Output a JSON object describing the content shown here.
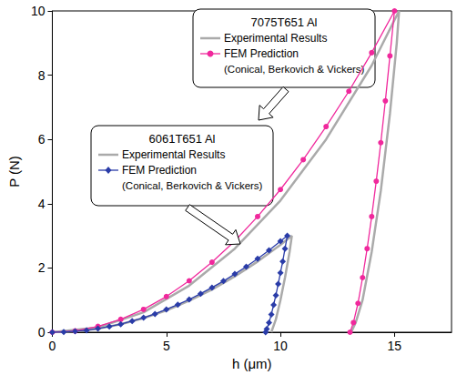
{
  "chart_data": {
    "type": "line",
    "x_label": "h (μm)",
    "y_label": "P (N)",
    "xlim": [
      0,
      17.5
    ],
    "xticks": [
      0,
      5,
      10,
      15
    ],
    "ylim": [
      0,
      10
    ],
    "yticks": [
      0,
      2,
      4,
      6,
      8,
      10
    ],
    "grid": false,
    "series": [
      {
        "name": "Experimental Results",
        "group": "7075T651 Al",
        "color": "#aaaaaa",
        "marker": "none",
        "line_style": "solid",
        "x": [
          0,
          2,
          4,
          6,
          8,
          10,
          12,
          14,
          15.2,
          15.1,
          14.8,
          14.4,
          14.0,
          13.6,
          13.3,
          13.1
        ],
        "values": [
          0,
          0.15,
          0.62,
          1.45,
          2.6,
          4.1,
          6.0,
          8.3,
          10,
          9.0,
          6.8,
          4.4,
          2.5,
          1.0,
          0.3,
          0
        ]
      },
      {
        "name": "FEM Prediction",
        "group": "7075T651 Al",
        "note": "(Conical, Berkovich & Vickers)",
        "color": "#f0289c",
        "marker": "circle",
        "line_style": "solid",
        "x": [
          0,
          1,
          2,
          3,
          4,
          5,
          6,
          7,
          8,
          9,
          10,
          11,
          12,
          13,
          14,
          15,
          14.8,
          14.6,
          14.4,
          14.2,
          14.0,
          13.8,
          13.6,
          13.4,
          13.2,
          13.05
        ],
        "values": [
          0,
          0.04,
          0.18,
          0.4,
          0.71,
          1.11,
          1.6,
          2.18,
          2.84,
          3.6,
          4.44,
          5.37,
          6.4,
          7.5,
          8.7,
          10,
          8.6,
          7.2,
          5.9,
          4.7,
          3.6,
          2.6,
          1.7,
          0.9,
          0.3,
          0
        ]
      },
      {
        "name": "Experimental Results",
        "group": "6061T651 Al",
        "color": "#aaaaaa",
        "marker": "none",
        "line_style": "solid",
        "x": [
          0,
          1,
          2,
          3,
          4,
          5,
          6,
          7,
          8,
          9,
          10,
          10.5,
          10.4,
          10.2,
          10.0,
          9.8,
          9.6
        ],
        "values": [
          0,
          0.03,
          0.11,
          0.25,
          0.44,
          0.68,
          0.98,
          1.33,
          1.74,
          2.2,
          2.72,
          3.0,
          2.5,
          1.7,
          1.0,
          0.4,
          0
        ]
      },
      {
        "name": "FEM Prediction",
        "group": "6061T651 Al",
        "note": "(Conical, Berkovich & Vickers)",
        "color": "#2a3ca8",
        "marker": "diamond",
        "line_style": "solid",
        "x": [
          0,
          0.5,
          1,
          1.5,
          2,
          2.5,
          3,
          3.5,
          4,
          4.5,
          5,
          5.5,
          6,
          6.5,
          7,
          7.5,
          8,
          8.5,
          9,
          9.5,
          10,
          10.3,
          10.2,
          10.1,
          10.0,
          9.9,
          9.8,
          9.7,
          9.6,
          9.5,
          9.4,
          9.35
        ],
        "values": [
          0,
          0.007,
          0.03,
          0.06,
          0.11,
          0.18,
          0.25,
          0.35,
          0.45,
          0.57,
          0.71,
          0.86,
          1.02,
          1.2,
          1.39,
          1.59,
          1.81,
          2.04,
          2.29,
          2.55,
          2.83,
          3.0,
          2.6,
          2.2,
          1.85,
          1.5,
          1.15,
          0.85,
          0.55,
          0.3,
          0.1,
          0
        ]
      }
    ]
  }
}
